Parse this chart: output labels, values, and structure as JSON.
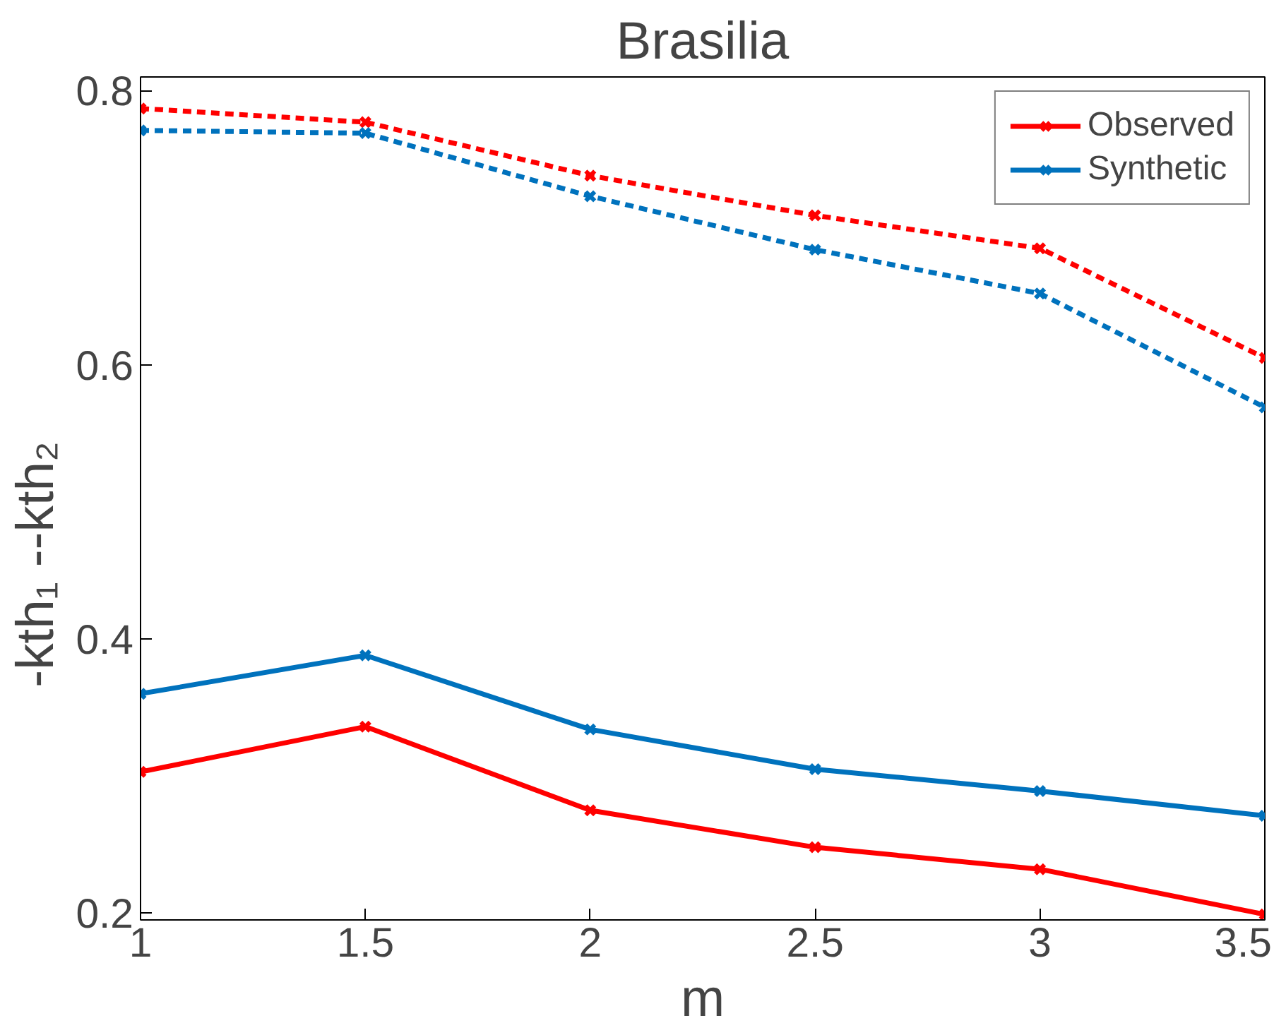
{
  "chart_data": {
    "type": "line",
    "title": "Brasilia",
    "xlabel": "m",
    "ylabel": "-kth₁          --kth₂",
    "x": [
      1,
      1.5,
      2,
      2.5,
      3,
      3.5
    ],
    "series": [
      {
        "name": "Observed",
        "color": "#ff0000",
        "values": [
          0.303,
          0.336,
          0.275,
          0.248,
          0.232,
          0.199
        ],
        "line_style": "solid"
      },
      {
        "name": "Synthetic",
        "color": "#0072bd",
        "values": [
          0.36,
          0.388,
          0.334,
          0.305,
          0.289,
          0.271
        ],
        "line_style": "solid"
      },
      {
        "color": "#ff0000",
        "values": [
          0.787,
          0.777,
          0.738,
          0.709,
          0.685,
          0.605
        ],
        "line_style": "dashed"
      },
      {
        "color": "#0072bd",
        "values": [
          0.771,
          0.769,
          0.723,
          0.684,
          0.652,
          0.569
        ],
        "line_style": "dashed"
      }
    ],
    "xlim": [
      1,
      3.5
    ],
    "xticks": [
      1,
      1.5,
      2,
      2.5,
      3,
      3.5
    ],
    "ylim": [
      0.195,
      0.81
    ],
    "yticks": [
      0.2,
      0.4,
      0.6,
      0.8
    ],
    "grid": false,
    "legend": "top right",
    "marker": "cross"
  }
}
